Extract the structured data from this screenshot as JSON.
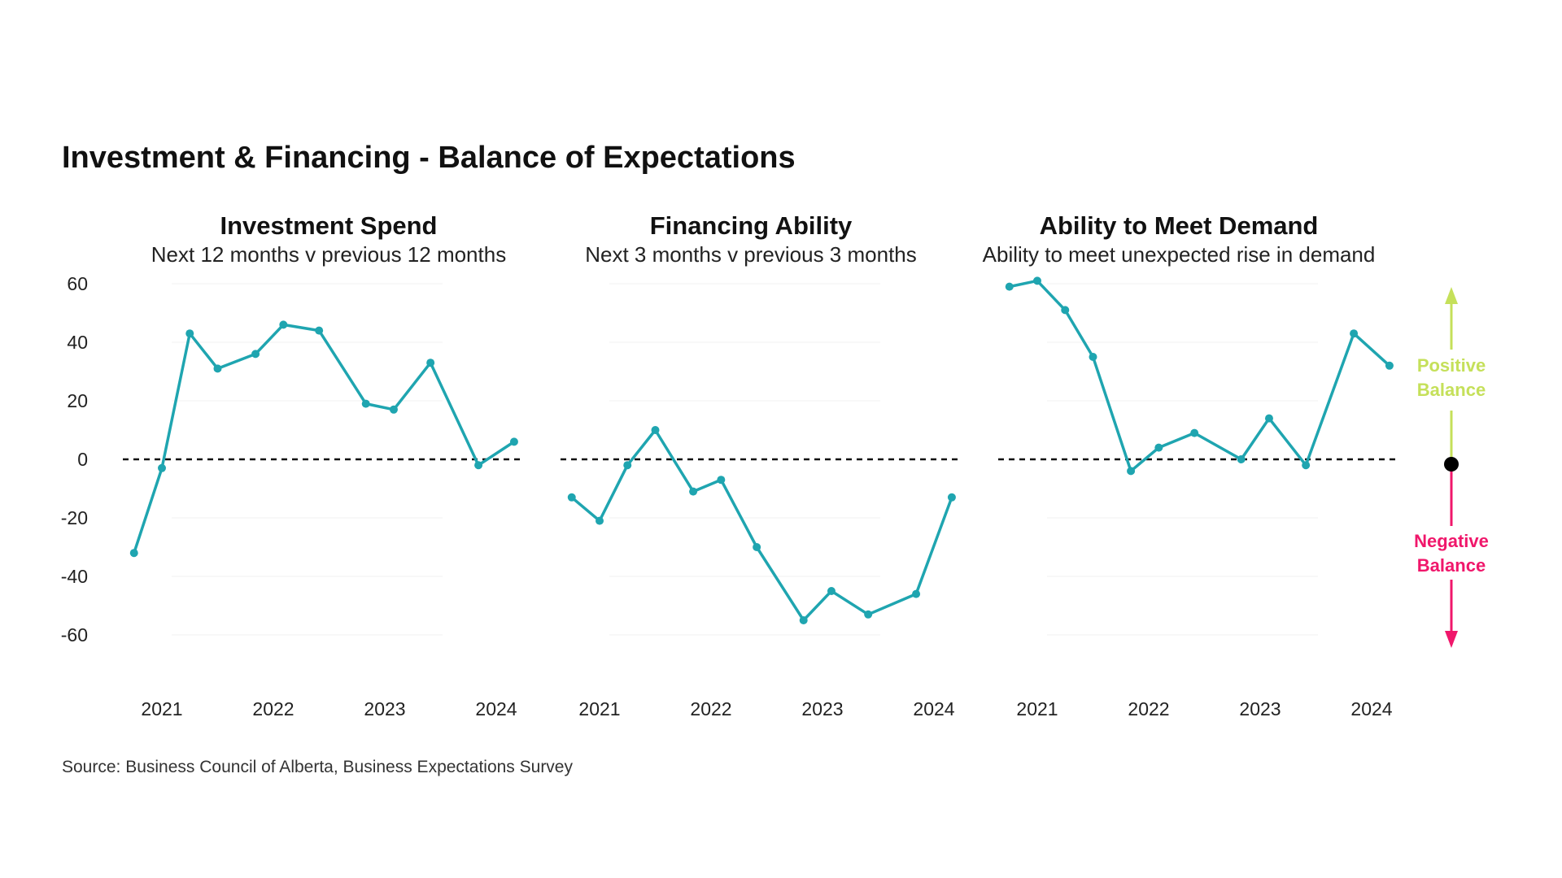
{
  "title": "Investment & Financing - Balance of Expectations",
  "source": "Source: Business Council of Alberta, Business Expectations Survey",
  "colors": {
    "line": "#1fa5b0",
    "positive": "#c5e05a",
    "negative": "#f0176b",
    "zero": "#111111"
  },
  "legend": {
    "positive": [
      "Positive",
      "Balance"
    ],
    "negative": [
      "Negative",
      "Balance"
    ]
  },
  "chart_data": [
    {
      "type": "line",
      "title": "Investment Spend",
      "subtitle": "Next 12 months v previous 12 months",
      "ylim": [
        -60,
        60
      ],
      "yticks": [
        60,
        40,
        20,
        0,
        -20,
        -40,
        -60
      ],
      "xticks": [
        "2021",
        "2022",
        "2023",
        "2024"
      ],
      "x": [
        2020.75,
        2021.0,
        2021.25,
        2021.5,
        2021.84,
        2022.09,
        2022.41,
        2022.83,
        2023.08,
        2023.41,
        2023.84,
        2024.16
      ],
      "values": [
        -32,
        -3,
        43,
        31,
        36,
        46,
        44,
        19,
        17,
        33,
        -2,
        6
      ]
    },
    {
      "type": "line",
      "title": "Financing Ability",
      "subtitle": "Next 3 months v previous 3 months",
      "ylim": [
        -60,
        60
      ],
      "xticks": [
        "2021",
        "2022",
        "2023",
        "2024"
      ],
      "x": [
        2020.75,
        2021.0,
        2021.25,
        2021.5,
        2021.84,
        2022.09,
        2022.41,
        2022.83,
        2023.08,
        2023.41,
        2023.84,
        2024.16
      ],
      "values": [
        -13,
        -21,
        -2,
        10,
        -11,
        -7,
        -30,
        -55,
        -45,
        -53,
        -46,
        -13
      ]
    },
    {
      "type": "line",
      "title": "Ability to Meet Demand",
      "subtitle": "Ability to meet unexpected rise in demand",
      "ylim": [
        -60,
        60
      ],
      "xticks": [
        "2021",
        "2022",
        "2023",
        "2024"
      ],
      "x": [
        2020.75,
        2021.0,
        2021.25,
        2021.5,
        2021.84,
        2022.09,
        2022.41,
        2022.83,
        2023.08,
        2023.41,
        2023.84,
        2024.16
      ],
      "values": [
        59,
        61,
        51,
        35,
        -4,
        4,
        9,
        0,
        14,
        -2,
        43,
        32
      ]
    }
  ]
}
